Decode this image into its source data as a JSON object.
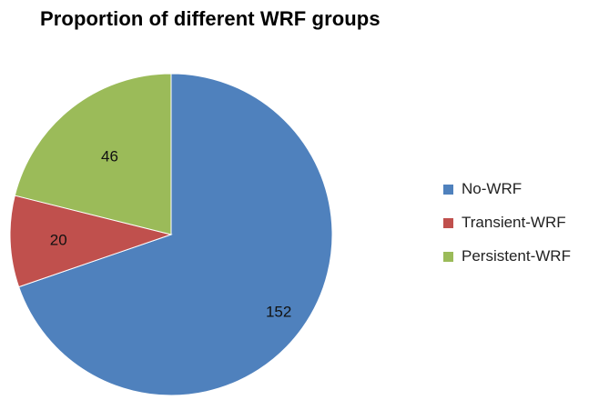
{
  "chart_data": {
    "type": "pie",
    "title": "Proportion of different WRF groups",
    "categories": [
      "No-WRF",
      "Transient-WRF",
      "Persistent-WRF"
    ],
    "values": [
      152,
      20,
      46
    ],
    "colors": [
      "#4F81BD",
      "#C0504D",
      "#9BBB59"
    ],
    "data_labels": [
      "152",
      "20",
      "46"
    ],
    "legend_position": "right",
    "start": "top, clockwise"
  }
}
